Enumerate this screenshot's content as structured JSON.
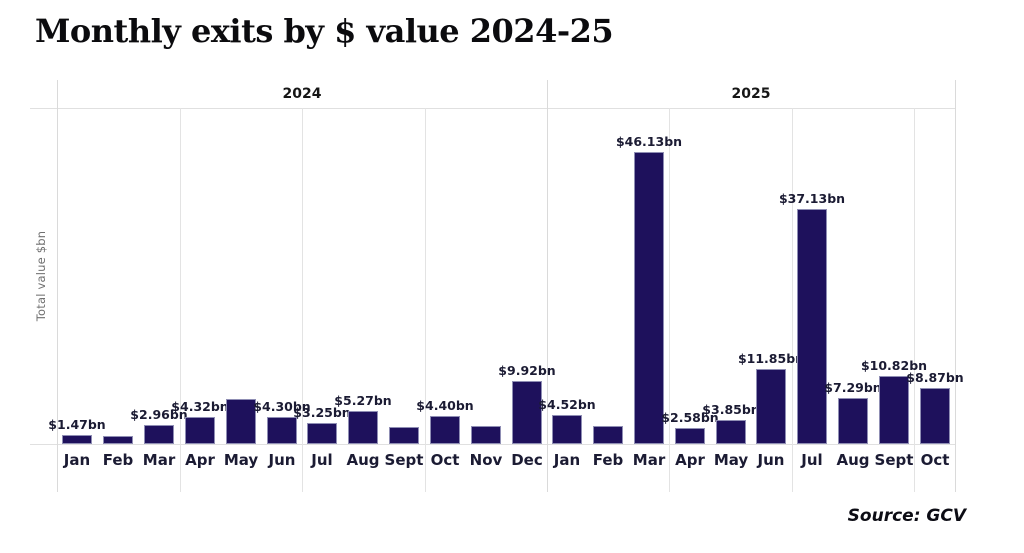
{
  "page": {
    "title": "Monthly exits by $ value 2024-25",
    "source": "Source: GCV"
  },
  "chart_data": {
    "type": "bar",
    "title": "Monthly exits by $ value 2024-25",
    "ylabel": "Total value $bn",
    "unit": "$bn",
    "ylim": [
      0,
      53
    ],
    "grid": "quarterly vertical separators, top and baseline horizontal rules",
    "legend_position": "none",
    "colors": {
      "bar": "#1e115c",
      "bar_edge": "#cdd2e4",
      "text": "#1b1b33",
      "grid": "#e3e3e3",
      "axis_label": "#707070"
    },
    "groups": [
      {
        "year": "2024",
        "categories": [
          "Jan",
          "Feb",
          "Mar",
          "Apr",
          "May",
          "Jun",
          "Jul",
          "Aug",
          "Sept",
          "Oct",
          "Nov",
          "Dec"
        ],
        "values": [
          1.47,
          1.3,
          2.96,
          4.32,
          7.1,
          4.3,
          3.25,
          5.27,
          2.7,
          4.4,
          2.8,
          9.92
        ],
        "labels": [
          "$1.47bn",
          null,
          "$2.96bn",
          "$4.32bn",
          null,
          "$4.30bn",
          "$3.25bn",
          "$5.27bn",
          null,
          "$4.40bn",
          null,
          "$9.92bn"
        ]
      },
      {
        "year": "2025",
        "categories": [
          "Jan",
          "Feb",
          "Mar",
          "Apr",
          "May",
          "Jun",
          "Jul",
          "Aug",
          "Sept",
          "Oct"
        ],
        "values": [
          4.52,
          2.9,
          46.13,
          2.58,
          3.85,
          11.85,
          37.13,
          7.29,
          10.82,
          8.87
        ],
        "labels": [
          "$4.52bn",
          null,
          "$46.13bn",
          "$2.58bn",
          "$3.85bn",
          "$11.85bn",
          "$37.13bn",
          "$7.29bn",
          "$10.82bn",
          "$8.87bn"
        ]
      }
    ]
  }
}
